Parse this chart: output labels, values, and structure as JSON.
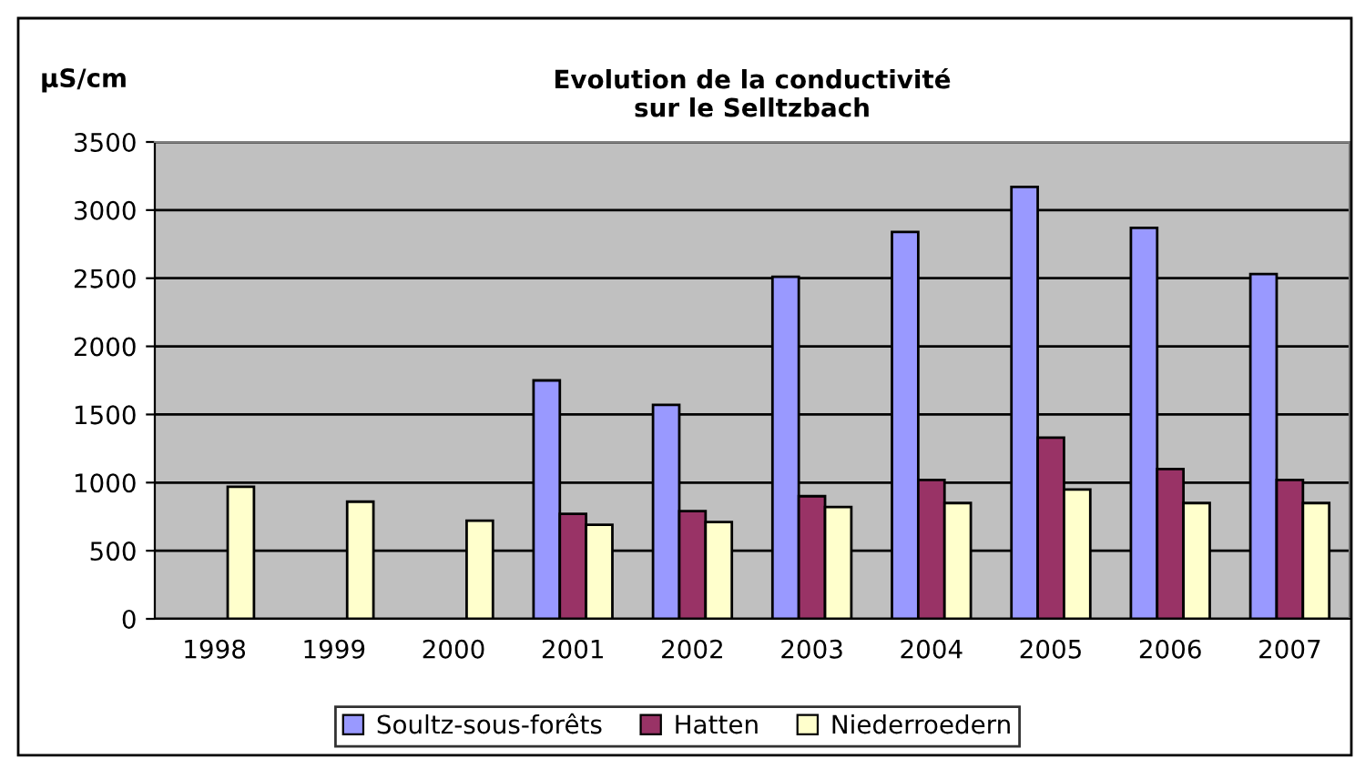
{
  "chart_data": {
    "type": "bar",
    "title": "Evolution de la conductivité\nsur le Selltzbach",
    "ylabel": "µS/cm",
    "categories": [
      "1998",
      "1999",
      "2000",
      "2001",
      "2002",
      "2003",
      "2004",
      "2005",
      "2006",
      "2007"
    ],
    "series": [
      {
        "name": "Soultz-sous-forêts",
        "color": "#9999ff",
        "values": [
          null,
          null,
          null,
          1750,
          1570,
          2510,
          2840,
          3170,
          2870,
          2530
        ]
      },
      {
        "name": "Hatten",
        "color": "#993366",
        "values": [
          null,
          null,
          null,
          770,
          790,
          900,
          1020,
          1330,
          1100,
          1020
        ]
      },
      {
        "name": "Niederroedern",
        "color": "#ffffcc",
        "values": [
          970,
          860,
          720,
          690,
          710,
          820,
          850,
          950,
          850,
          850
        ]
      }
    ],
    "ylim": [
      0,
      3500
    ],
    "yticks": [
      0,
      500,
      1000,
      1500,
      2000,
      2500,
      3000,
      3500
    ],
    "grid": "y",
    "legend": "bottom"
  }
}
